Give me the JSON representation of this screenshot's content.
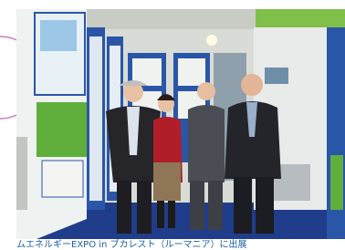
{
  "caption": "ムエネルギーEXPO in ブカレスト（ルーマニア）に出展"
}
